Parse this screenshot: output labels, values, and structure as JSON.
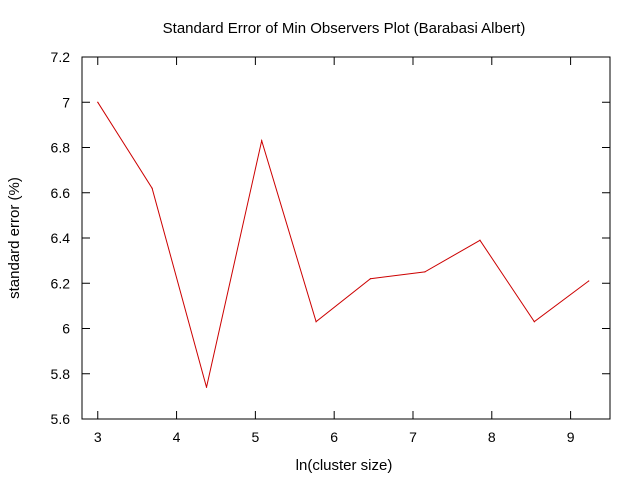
{
  "chart_data": {
    "type": "line",
    "title": "Standard Error of Min Observers Plot (Barabasi Albert)",
    "xlabel": "ln(cluster size)",
    "ylabel": "standard error (%)",
    "xlim": [
      2.8,
      9.5
    ],
    "ylim": [
      5.6,
      7.2
    ],
    "xticks": [
      3,
      4,
      5,
      6,
      7,
      8,
      9
    ],
    "yticks": [
      5.6,
      5.8,
      6,
      6.2,
      6.4,
      6.6,
      6.8,
      7,
      7.2
    ],
    "xtick_labels": [
      "3",
      "4",
      "5",
      "6",
      "7",
      "8",
      "9"
    ],
    "ytick_labels": [
      "5.6",
      "5.8",
      "6",
      "6.2",
      "6.4",
      "6.6",
      "6.8",
      "7",
      "7.2"
    ],
    "grid": false,
    "series": [
      {
        "color": "#cc0000",
        "x": [
          3.0,
          3.69,
          4.38,
          5.08,
          5.77,
          6.46,
          7.15,
          7.85,
          8.54,
          9.23
        ],
        "y": [
          7.0,
          6.62,
          5.74,
          6.83,
          6.03,
          6.22,
          6.25,
          6.39,
          6.03,
          6.21
        ]
      }
    ]
  }
}
